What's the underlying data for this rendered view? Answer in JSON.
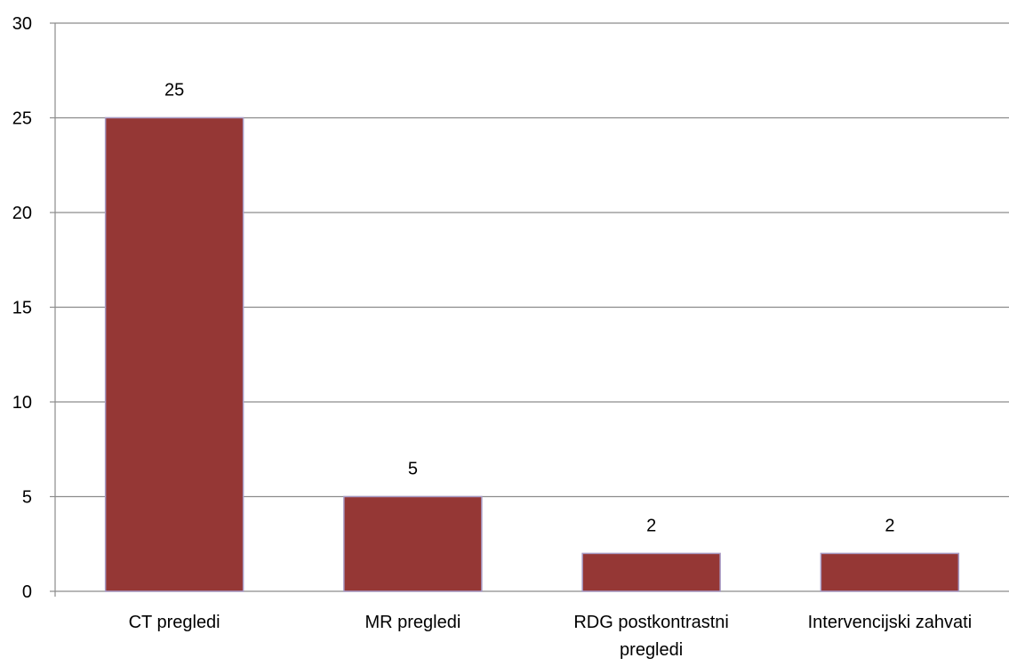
{
  "chart_data": {
    "type": "bar",
    "title": "",
    "xlabel": "",
    "ylabel": "",
    "categories": [
      [
        "CT pregledi"
      ],
      [
        "MR pregledi"
      ],
      [
        "RDG postkontrastni",
        "pregledi"
      ],
      [
        "Intervencijski zahvati"
      ]
    ],
    "values": [
      25,
      5,
      2,
      2
    ],
    "ylim": [
      0,
      30
    ],
    "yticks": [
      0,
      5,
      10,
      15,
      20,
      25,
      30
    ],
    "grid": true,
    "legend": "none",
    "data_labels": true,
    "colors": {
      "bar_fill": "#953735",
      "bar_stroke": "#a79ac4",
      "gridline": "#8c8c8c",
      "axis": "#8c8c8c"
    }
  }
}
